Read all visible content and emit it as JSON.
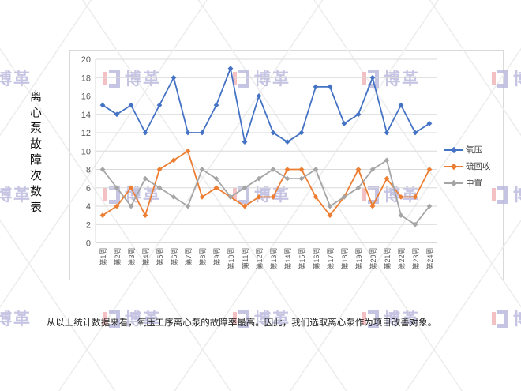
{
  "title": "离心泵故障次数表",
  "caption": "从以上统计数据来看，氧压工序离心泵的故障率最高。因此，我们选取离心泵作为项目改善对象。",
  "watermark": {
    "text": "博革"
  },
  "colors": {
    "grid": "#D9D9D9",
    "frame_border": "#D9D9D9",
    "axis_text": "#595959",
    "legend_text": "#3F3F3F",
    "watermark_text": "#B6B4DA",
    "watermark_accent": "#F0B0B3"
  },
  "chart_data": {
    "type": "line",
    "title": "",
    "xlabel": "",
    "ylabel": "",
    "ylim": [
      0,
      20
    ],
    "y_ticks": [
      0,
      2,
      4,
      6,
      8,
      10,
      12,
      14,
      16,
      18,
      20
    ],
    "grid": "horizontal",
    "legend_position": "right",
    "marker": "diamond",
    "categories": [
      "第1周",
      "第2周",
      "第3周",
      "第4周",
      "第5周",
      "第6周",
      "第7周",
      "第8周",
      "第9周",
      "第10周",
      "第11周",
      "第12周",
      "第13周",
      "第14周",
      "第15周",
      "第16周",
      "第17周",
      "第18周",
      "第19周",
      "第20周",
      "第21周",
      "第22周",
      "第23周",
      "第24周"
    ],
    "series": [
      {
        "name": "氧压",
        "color": "#4472C4",
        "values": [
          15,
          14,
          15,
          12,
          15,
          18,
          12,
          12,
          15,
          19,
          11,
          16,
          12,
          11,
          12,
          17,
          17,
          13,
          14,
          18,
          12,
          15,
          12,
          13
        ]
      },
      {
        "name": "硫回收",
        "color": "#ED7D31",
        "values": [
          3,
          4,
          6,
          3,
          8,
          9,
          10,
          5,
          6,
          5,
          4,
          5,
          5,
          8,
          8,
          5,
          3,
          5,
          8,
          4,
          7,
          5,
          5,
          8
        ]
      },
      {
        "name": "中置",
        "color": "#A5A5A5",
        "values": [
          8,
          6,
          4,
          7,
          6,
          5,
          4,
          8,
          7,
          5,
          6,
          7,
          8,
          7,
          7,
          8,
          4,
          5,
          6,
          8,
          9,
          3,
          2,
          4
        ]
      }
    ]
  }
}
